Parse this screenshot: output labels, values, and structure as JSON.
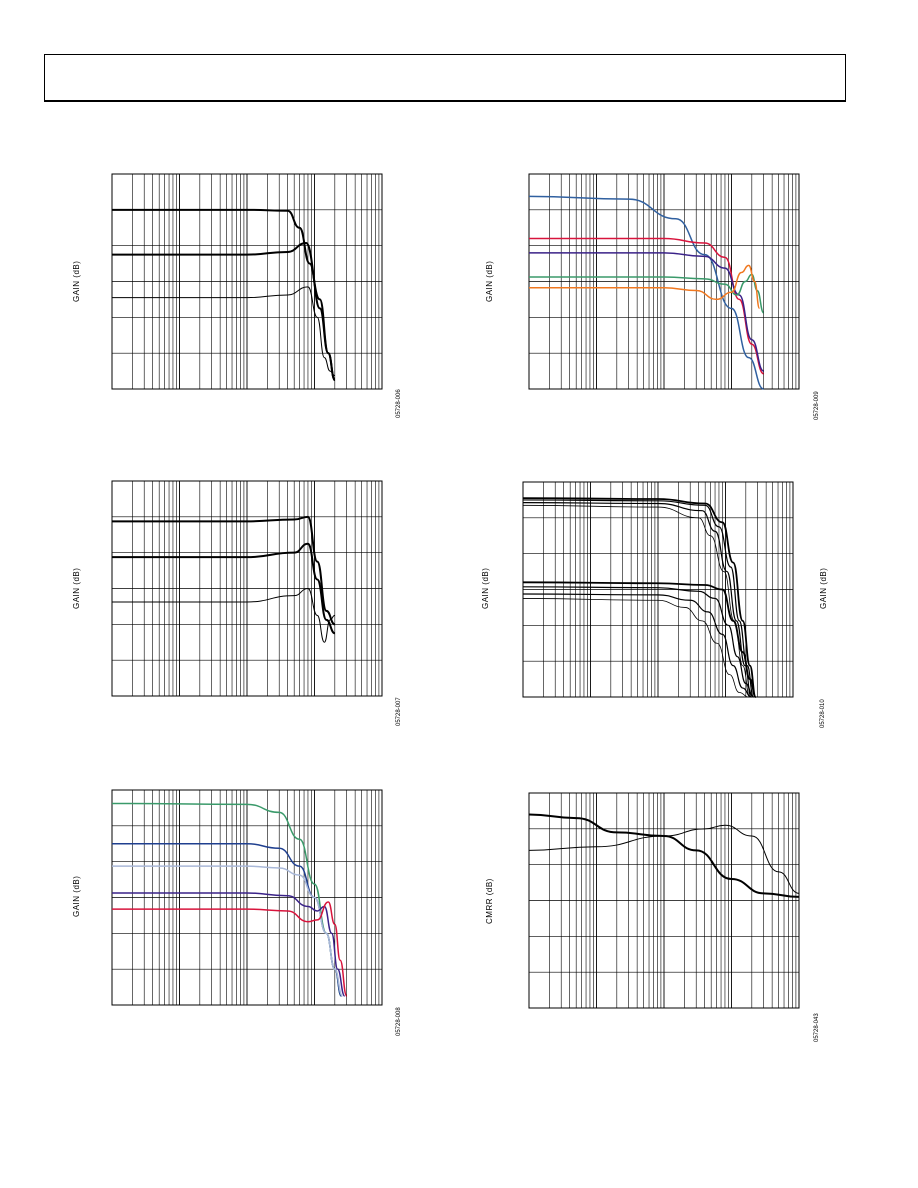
{
  "chart_data": [
    {
      "id": "c1",
      "type": "line",
      "ylabel": "GAIN (dB)",
      "figure_code": "05728-006",
      "x_scale": "log",
      "xlim": [
        0.1,
        1000
      ],
      "ylim": [
        -12,
        12
      ],
      "grid": true,
      "series": [
        {
          "x": [
            0.1,
            10,
            40,
            60,
            85,
            120,
            160,
            200
          ],
          "y": [
            8,
            8,
            7.9,
            6,
            2,
            -3,
            -8,
            -11
          ],
          "width": 2
        },
        {
          "x": [
            0.1,
            10,
            40,
            75,
            120,
            160,
            200
          ],
          "y": [
            3,
            3,
            3.3,
            4.3,
            -2,
            -8,
            -11
          ],
          "width": 2
        },
        {
          "x": [
            0.1,
            10,
            40,
            80,
            110,
            140,
            170,
            200
          ],
          "y": [
            -1.8,
            -1.8,
            -1.5,
            -0.6,
            -4,
            -8.5,
            -10,
            -10.5
          ],
          "width": 1
        }
      ]
    },
    {
      "id": "c2",
      "type": "line",
      "ylabel": "GAIN (dB)",
      "figure_code": "05728-007",
      "x_scale": "log",
      "xlim": [
        0.1,
        1000
      ],
      "ylim": [
        -12,
        12
      ],
      "grid": true,
      "series": [
        {
          "x": [
            0.1,
            10,
            50,
            80,
            110,
            150,
            200
          ],
          "y": [
            7.5,
            7.5,
            7.7,
            8,
            3,
            -2.5,
            -4
          ],
          "width": 2
        },
        {
          "x": [
            0.1,
            10,
            50,
            80,
            110,
            150,
            200
          ],
          "y": [
            3.5,
            3.5,
            4,
            5,
            1,
            -3.5,
            -5
          ],
          "width": 2
        },
        {
          "x": [
            0.1,
            10,
            50,
            80,
            110,
            140,
            170,
            200
          ],
          "y": [
            -1.5,
            -1.5,
            -0.8,
            0,
            -3,
            -6,
            -3.5,
            -3
          ],
          "width": 1
        }
      ]
    },
    {
      "id": "c3",
      "type": "line",
      "ylabel": "GAIN (dB)",
      "figure_code": "05728-008",
      "x_scale": "log",
      "xlim": [
        0.1,
        1000
      ],
      "ylim": [
        -12,
        12
      ],
      "grid": true,
      "series": [
        {
          "x": [
            0.1,
            10,
            30,
            60,
            100,
            150,
            200,
            250
          ],
          "y": [
            10.5,
            10.4,
            9.5,
            6.5,
            1.5,
            -4,
            -8,
            -11
          ],
          "color": "#3a9a6a",
          "width": 1.5
        },
        {
          "x": [
            0.1,
            10,
            30,
            60,
            100,
            150,
            200,
            250
          ],
          "y": [
            6,
            6,
            5.5,
            3.5,
            0,
            -4,
            -8,
            -11
          ],
          "color": "#1f3f8f",
          "width": 1.5
        },
        {
          "x": [
            0.1,
            10,
            30,
            60,
            100,
            150,
            200,
            260
          ],
          "y": [
            3.5,
            3.5,
            3.3,
            2.5,
            0,
            -4,
            -8,
            -11
          ],
          "color": "#a9b8d8",
          "width": 1.5
        },
        {
          "x": [
            0.1,
            10,
            40,
            80,
            110,
            140,
            180,
            220,
            280
          ],
          "y": [
            0.5,
            0.5,
            0.2,
            -1,
            -1.5,
            -1,
            -4,
            -8,
            -11
          ],
          "color": "#3a2288",
          "width": 1.5
        },
        {
          "x": [
            0.1,
            10,
            40,
            80,
            110,
            160,
            200,
            240,
            300
          ],
          "y": [
            -1.3,
            -1.3,
            -1.5,
            -2.7,
            -2.5,
            -0.5,
            -3,
            -7,
            -11
          ],
          "color": "#d8143c",
          "width": 1.5
        }
      ]
    },
    {
      "id": "c4",
      "type": "line",
      "ylabel": "GAIN (dB)",
      "figure_code": "05728-009",
      "x_scale": "log",
      "xlim": [
        0.1,
        1000
      ],
      "ylim": [
        -12,
        12
      ],
      "grid": true,
      "series": [
        {
          "x": [
            0.1,
            3,
            15,
            40,
            100,
            180,
            300
          ],
          "y": [
            9.5,
            9.2,
            7,
            3,
            -3,
            -8.5,
            -12
          ],
          "color": "#3060a0",
          "width": 1.5
        },
        {
          "x": [
            0.1,
            10,
            40,
            80,
            130,
            200,
            300
          ],
          "y": [
            4.8,
            4.8,
            4.3,
            2.7,
            -2,
            -7,
            -10.3
          ],
          "color": "#d8143c",
          "width": 1.5
        },
        {
          "x": [
            0.1,
            10,
            40,
            80,
            130,
            200,
            300
          ],
          "y": [
            3.2,
            3.2,
            2.8,
            1.5,
            -1.5,
            -6.5,
            -10
          ],
          "color": "#3a2288",
          "width": 1.5
        },
        {
          "x": [
            0.1,
            10,
            40,
            80,
            120,
            160,
            200,
            240,
            300
          ],
          "y": [
            0.5,
            0.5,
            0.3,
            -0.3,
            -1.5,
            0,
            0.8,
            -1,
            -3.5
          ],
          "color": "#3a9a6a",
          "width": 1.5
        },
        {
          "x": [
            0.1,
            10,
            30,
            60,
            100,
            140,
            180,
            220,
            260
          ],
          "y": [
            -0.7,
            -0.7,
            -1,
            -2,
            -1.2,
            1,
            1.8,
            0,
            -3
          ],
          "color": "#f07820",
          "width": 1.5
        }
      ]
    },
    {
      "id": "c5",
      "type": "line",
      "ylabel": "GAIN (dB)",
      "ylabel_right": "GAIN (dB)",
      "figure_code": "05728-010",
      "x_scale": "log",
      "xlim": [
        0.1,
        1000
      ],
      "ylim": [
        -12,
        12
      ],
      "grid": true,
      "series": [
        {
          "x": [
            0.1,
            10,
            50,
            90,
            130,
            180,
            230,
            280
          ],
          "y": [
            10.2,
            10.1,
            9.6,
            7.5,
            3,
            -3.5,
            -8.5,
            -12
          ],
          "width": 1.8
        },
        {
          "x": [
            0.1,
            10,
            50,
            80,
            120,
            160,
            210,
            260
          ],
          "y": [
            10,
            9.9,
            9.4,
            7,
            2.5,
            -3.5,
            -8.5,
            -12
          ],
          "width": 1.2
        },
        {
          "x": [
            0.1,
            10,
            45,
            70,
            105,
            145,
            195,
            240
          ],
          "y": [
            9.7,
            9.6,
            8.8,
            6.5,
            2,
            -3.5,
            -8.5,
            -12
          ],
          "width": 1.2
        },
        {
          "x": [
            0.1,
            10,
            40,
            60,
            95,
            135,
            180,
            230
          ],
          "y": [
            9.4,
            9.2,
            8,
            6,
            2,
            -3.5,
            -8.5,
            -12
          ],
          "width": 0.8
        },
        {
          "x": [
            0.1,
            10,
            50,
            90,
            130,
            180,
            230,
            280
          ],
          "y": [
            0.8,
            0.7,
            0.5,
            0,
            -3.5,
            -7,
            -10,
            -12
          ],
          "width": 1.8
        },
        {
          "x": [
            0.1,
            10,
            40,
            70,
            110,
            150,
            200,
            260
          ],
          "y": [
            0.3,
            0.2,
            -0.2,
            -1,
            -4,
            -7.5,
            -10.5,
            -12
          ],
          "width": 1.2
        },
        {
          "x": [
            0.1,
            10,
            30,
            55,
            90,
            130,
            180,
            240
          ],
          "y": [
            -0.5,
            -0.6,
            -1.2,
            -2.5,
            -5,
            -8.5,
            -11,
            -12
          ],
          "width": 1.2
        },
        {
          "x": [
            0.1,
            10,
            25,
            45,
            75,
            115,
            160,
            220
          ],
          "y": [
            -1,
            -1.2,
            -2,
            -3.5,
            -6,
            -9.5,
            -11.5,
            -12
          ],
          "width": 0.8
        }
      ]
    },
    {
      "id": "c6",
      "type": "line",
      "ylabel": "CMRR (dB)",
      "figure_code": "05728-043",
      "x_scale": "log",
      "xlim": [
        0.1,
        1000
      ],
      "ylim": [
        0,
        6
      ],
      "grid": true,
      "series": [
        {
          "x": [
            0.1,
            0.5,
            2,
            10,
            30,
            100,
            300,
            1000
          ],
          "y": [
            5.4,
            5.3,
            4.9,
            4.8,
            4.4,
            3.6,
            3.2,
            3.1
          ],
          "width": 2
        },
        {
          "x": [
            0.1,
            1,
            10,
            40,
            80,
            200,
            500,
            1000
          ],
          "y": [
            4.4,
            4.5,
            4.8,
            5,
            5.1,
            4.8,
            3.8,
            3.2
          ],
          "width": 1
        }
      ]
    }
  ]
}
